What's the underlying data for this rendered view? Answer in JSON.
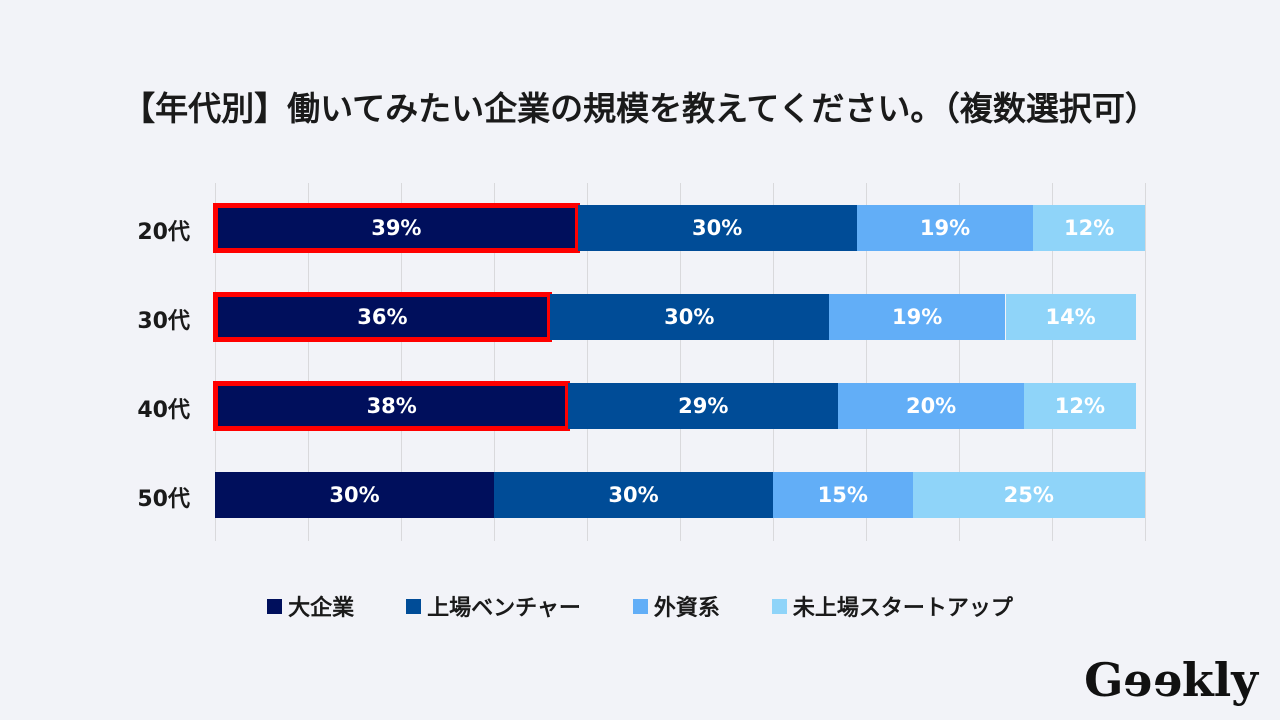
{
  "chart_data": {
    "type": "bar",
    "orientation": "horizontal",
    "stacked": true,
    "title": "【年代別】働いてみたい企業の規模を教えてください。（複数選択可）",
    "categories": [
      "20代",
      "30代",
      "40代",
      "50代"
    ],
    "series": [
      {
        "name": "大企業",
        "color": "#000f5c",
        "values": [
          39,
          36,
          38,
          30
        ]
      },
      {
        "name": "上場ベンチャー",
        "color": "#004c97",
        "values": [
          30,
          30,
          29,
          30
        ]
      },
      {
        "name": "外資系",
        "color": "#62aef7",
        "values": [
          19,
          19,
          20,
          15
        ]
      },
      {
        "name": "未上場スタートアップ",
        "color": "#8fd4f9",
        "values": [
          12,
          14,
          12,
          25
        ]
      }
    ],
    "value_suffix": "%",
    "xlim": [
      0,
      100
    ],
    "grid": true,
    "legend_position": "bottom",
    "highlighted": [
      {
        "category": "20代",
        "series": "大企業"
      },
      {
        "category": "30代",
        "series": "大企業"
      },
      {
        "category": "40代",
        "series": "大企業"
      }
    ],
    "highlight_color": "#ff0000"
  },
  "logo": "Geekly"
}
